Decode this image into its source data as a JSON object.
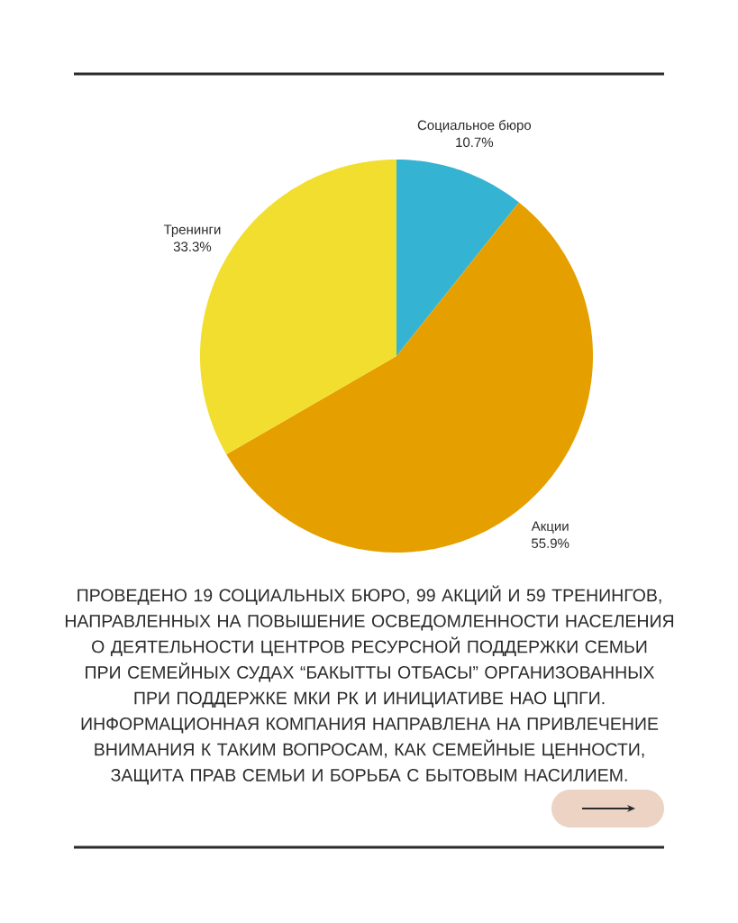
{
  "chart_data": {
    "type": "pie",
    "categories": [
      "Социальное бюро",
      "Акции",
      "Тренинги"
    ],
    "values": [
      10.7,
      55.9,
      33.3
    ],
    "colors": [
      "#35b3d2",
      "#e5a000",
      "#f2de2e"
    ],
    "value_labels": [
      "10.7%",
      "55.9%",
      "33.3%"
    ],
    "annotations": [
      "ПРОВЕДЕНО 19 СОЦИАЛЬНЫХ БЮРО, 99 АКЦИЙ И 59 ТРЕНИНГОВ, НАПРАВЛЕННЫХ НА ПОВЫШЕНИЕ ОСВЕДОМЛЕННОСТИ НАСЕЛЕНИЯ О ДЕЯТЕЛЬНОСТИ ЦЕНТРОВ РЕСУРСНОЙ ПОДДЕРЖКИ СЕМЬИ ПРИ СЕМЕЙНЫХ СУДАХ “БАКЫТТЫ ОТБАСЫ” ОРГАНИЗОВАННЫХ ПРИ ПОДДЕРЖКЕ МКИ РК И ИНИЦИАТИВЕ НАО ЦПГИ. ИНФОРМАЦИОННАЯ КОМПАНИЯ НАПРАВЛЕНА НА ПРИВЛЕЧЕНИЕ ВНИМАНИЯ К ТАКИМ ВОПРОСАМ, КАК СЕМЕЙНЫЕ ЦЕННОСТИ, ЗАЩИТА ПРАВ СЕМЬИ И БОРЬБА С БЫТОВЫМ НАСИЛИЕМ."
    ]
  }
}
